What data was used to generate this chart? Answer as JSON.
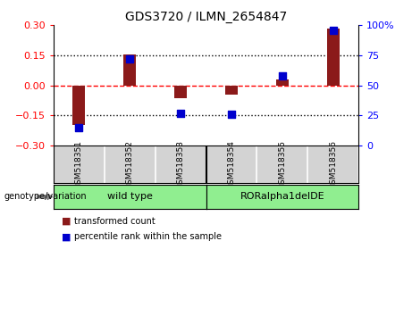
{
  "title": "GDS3720 / ILMN_2654847",
  "samples": [
    "GSM518351",
    "GSM518352",
    "GSM518353",
    "GSM518354",
    "GSM518355",
    "GSM518356"
  ],
  "bar_values": [
    -0.195,
    0.155,
    -0.065,
    -0.045,
    0.03,
    0.285
  ],
  "dot_values_pct": [
    15,
    72,
    27,
    26,
    58,
    96
  ],
  "bar_color": "#8B1A1A",
  "dot_color": "#0000CD",
  "ylim_left": [
    -0.3,
    0.3
  ],
  "ylim_right": [
    0,
    100
  ],
  "yticks_left": [
    -0.3,
    -0.15,
    0,
    0.15,
    0.3
  ],
  "yticks_right": [
    0,
    25,
    50,
    75,
    100
  ],
  "ytick_right_labels": [
    "0",
    "25",
    "50",
    "75",
    "100%"
  ],
  "hlines": [
    -0.15,
    0.0,
    0.15
  ],
  "hline_styles": [
    "dotted",
    "dashed",
    "dotted"
  ],
  "hline_colors": [
    "black",
    "red",
    "black"
  ],
  "background_color": "#ffffff",
  "cell_bg_color": "#d3d3d3",
  "group_color": "#90EE90",
  "legend_items": [
    "transformed count",
    "percentile rank within the sample"
  ],
  "genotype_label": "genotype/variation",
  "group_labels": [
    "wild type",
    "RORalpha1delDE"
  ],
  "group_split": 3,
  "bar_width": 0.25
}
